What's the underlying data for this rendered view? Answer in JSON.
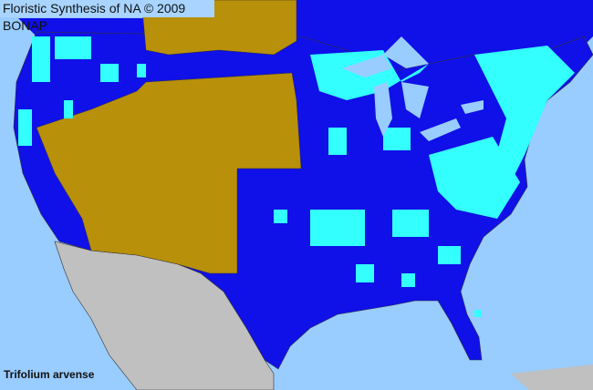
{
  "header": {
    "title": "Floristic Synthesis of NA © 2009 BONAP"
  },
  "species": "Trifolium arvense",
  "colors": {
    "ocean": "#99ccff",
    "present": "#1010e8",
    "absent_state": "#b8900a",
    "county_present": "#33ffff",
    "outside_range": "#c0c0c0",
    "borders": "#333333"
  }
}
